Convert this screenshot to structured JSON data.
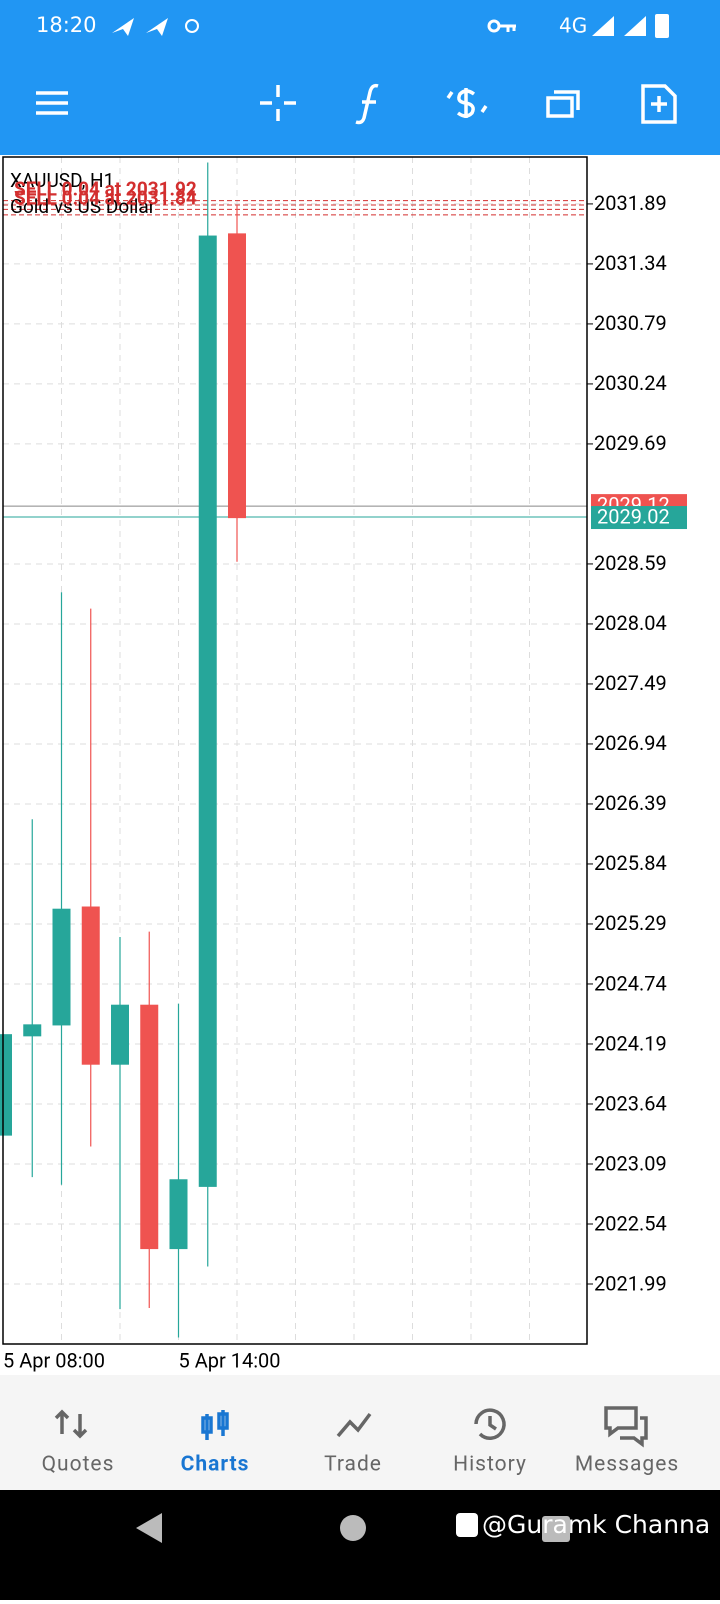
{
  "status_bar": {
    "time": "18:20",
    "network": "4G"
  },
  "chart_data": {
    "type": "candlestick",
    "symbol": "XAUUSD, H1",
    "description": "Gold vs US Dollar",
    "categories": [
      "5 Apr 08:00",
      null,
      null,
      null,
      null,
      null,
      "5 Apr 14:00",
      null,
      null
    ],
    "open": [
      2023.35,
      2024.26,
      2024.36,
      2025.45,
      2024.0,
      2024.55,
      2022.31,
      2022.88,
      2031.62
    ],
    "high": [
      2024.28,
      2026.25,
      2028.33,
      2028.18,
      2025.17,
      2025.22,
      2024.56,
      2032.27,
      2031.88
    ],
    "low": [
      2023.35,
      2022.97,
      2022.9,
      2023.25,
      2021.76,
      2021.77,
      2021.5,
      2022.15,
      2028.61
    ],
    "close": [
      2024.28,
      2024.37,
      2025.43,
      2024.0,
      2024.55,
      2022.31,
      2022.95,
      2031.6,
      2029.01
    ],
    "up_color": "#26a69a",
    "down_color": "#ef5350",
    "ylim": [
      2021.44,
      2032.32
    ],
    "yticks": [
      2031.89,
      2031.34,
      2030.79,
      2030.24,
      2029.69,
      2028.59,
      2028.04,
      2027.49,
      2026.94,
      2026.39,
      2025.84,
      2025.29,
      2024.74,
      2024.19,
      2023.64,
      2023.09,
      2022.54,
      2021.99
    ],
    "grid": true,
    "bid": {
      "value": 2029.02,
      "label": "2029.02",
      "color": "#26a69a"
    },
    "ask": {
      "value": 2029.12,
      "label": "2029.12",
      "color": "#ef5350"
    },
    "order_lines": [
      {
        "label": "SELL 0.04 at 2031.92",
        "price": 2031.92
      },
      {
        "label": "SELL 0.04 at 2031.84",
        "price": 2031.84
      },
      {
        "price": 2031.88
      },
      {
        "price": 2031.79
      }
    ],
    "order_color": "#d32f2f"
  },
  "nav": {
    "items": [
      "Quotes",
      "Charts",
      "Trade",
      "History",
      "Messages"
    ],
    "active": 1
  },
  "watermark": "@Guramk Channa"
}
